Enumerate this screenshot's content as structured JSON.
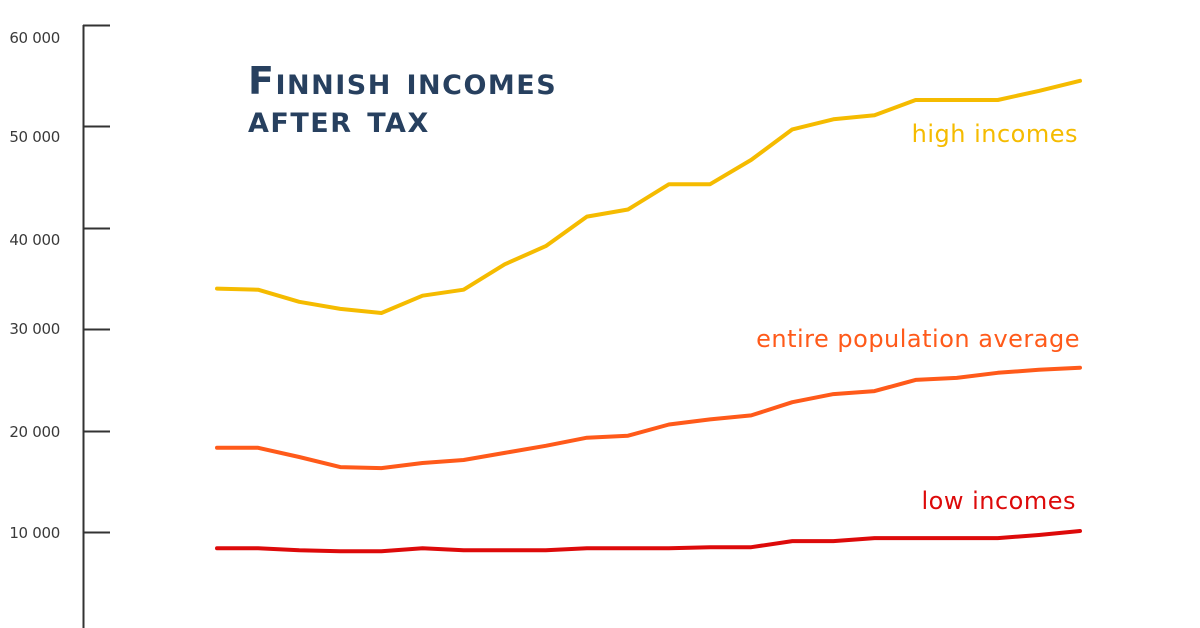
{
  "title": {
    "line1": "Finnish incomes",
    "line2": "after tax"
  },
  "colors": {
    "title": "#27405f",
    "axis": "#333333",
    "high": "#f5bb00",
    "average": "#ff5a1a",
    "low": "#dd0a0a"
  },
  "y_axis": {
    "ticks": [
      "60 000",
      "50 000",
      "40 000",
      "30 000",
      "20 000",
      "10 000"
    ]
  },
  "labels": {
    "high": "high incomes",
    "average": "entire population average",
    "low": "low incomes"
  },
  "chart_data": {
    "type": "line",
    "title": "Finnish incomes after tax",
    "xlabel": "",
    "ylabel": "",
    "ylim": [
      0,
      60000
    ],
    "yticks": [
      10000,
      20000,
      30000,
      40000,
      50000,
      60000
    ],
    "grid": false,
    "legend_position": "inline labels at right end of each series",
    "x": [
      1,
      2,
      3,
      4,
      5,
      6,
      7,
      8,
      9,
      10,
      11,
      12,
      13,
      14,
      15,
      16,
      17,
      18,
      19,
      20,
      21,
      22
    ],
    "series": [
      {
        "name": "high incomes",
        "color": "#f5bb00",
        "values": [
          34000,
          33900,
          32700,
          32000,
          31600,
          33300,
          33900,
          36400,
          38200,
          41100,
          41800,
          44300,
          44300,
          46700,
          49700,
          50700,
          51100,
          52600,
          52600,
          52600,
          53500,
          54500
        ]
      },
      {
        "name": "entire population average",
        "color": "#ff5a1a",
        "values": [
          18300,
          18300,
          17400,
          16400,
          16300,
          16800,
          17100,
          17800,
          18500,
          19300,
          19500,
          20600,
          21100,
          21500,
          22800,
          23600,
          23900,
          25000,
          25200,
          25700,
          26000,
          26200
        ]
      },
      {
        "name": "low incomes",
        "color": "#dd0a0a",
        "values": [
          8400,
          8400,
          8200,
          8100,
          8100,
          8400,
          8200,
          8200,
          8200,
          8400,
          8400,
          8400,
          8500,
          8500,
          9100,
          9100,
          9400,
          9400,
          9400,
          9400,
          9700,
          10100
        ]
      }
    ]
  }
}
